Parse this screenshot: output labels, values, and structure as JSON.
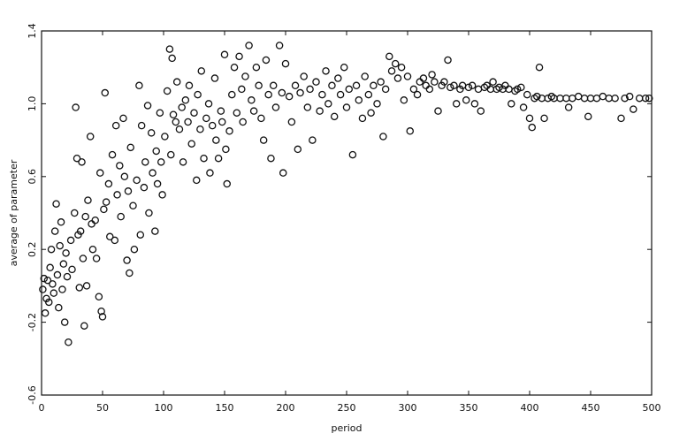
{
  "chart_data": {
    "type": "scatter",
    "x_label": "period",
    "y_label": "average of parameter",
    "xlim": [
      0,
      500
    ],
    "xticks": [
      0,
      50,
      100,
      150,
      200,
      250,
      300,
      350,
      400,
      450,
      500
    ],
    "ylim": [
      -0.6,
      1.4
    ],
    "yticks": [
      -0.6,
      -0.2,
      0.2,
      0.6,
      {
        "value": 1,
        "label": "1.0"
      },
      1.4
    ],
    "color": "#111111",
    "x": [
      1,
      2,
      3,
      4,
      5,
      6,
      7,
      8,
      9,
      10,
      11,
      12,
      13,
      14,
      15,
      16,
      17,
      18,
      19,
      20,
      21,
      22,
      24,
      25,
      27,
      28,
      29,
      30,
      31,
      32,
      33,
      34,
      35,
      36,
      37,
      38,
      40,
      41,
      42,
      44,
      45,
      47,
      48,
      49,
      50,
      51,
      52,
      53,
      55,
      56,
      58,
      60,
      61,
      62,
      64,
      65,
      67,
      68,
      70,
      71,
      72,
      73,
      75,
      76,
      78,
      80,
      81,
      82,
      84,
      85,
      87,
      88,
      90,
      91,
      93,
      94,
      95,
      97,
      98,
      99,
      101,
      103,
      105,
      106,
      107,
      108,
      110,
      111,
      113,
      115,
      116,
      118,
      120,
      121,
      123,
      125,
      127,
      128,
      130,
      131,
      133,
      135,
      137,
      138,
      140,
      142,
      143,
      145,
      147,
      148,
      150,
      151,
      152,
      154,
      156,
      158,
      160,
      162,
      164,
      165,
      167,
      170,
      172,
      174,
      176,
      178,
      180,
      182,
      184,
      186,
      188,
      190,
      192,
      195,
      197,
      198,
      200,
      203,
      205,
      208,
      210,
      212,
      215,
      218,
      220,
      222,
      225,
      228,
      230,
      233,
      235,
      238,
      240,
      243,
      245,
      248,
      250,
      252,
      255,
      258,
      260,
      263,
      265,
      268,
      270,
      272,
      275,
      278,
      280,
      282,
      285,
      287,
      290,
      292,
      295,
      297,
      300,
      302,
      305,
      308,
      310,
      313,
      315,
      318,
      320,
      322,
      325,
      328,
      330,
      333,
      335,
      338,
      340,
      343,
      345,
      348,
      350,
      353,
      355,
      358,
      360,
      363,
      365,
      368,
      370,
      373,
      375,
      378,
      380,
      383,
      385,
      388,
      390,
      393,
      395,
      398,
      400,
      402,
      404,
      406,
      408,
      410,
      412,
      415,
      418,
      420,
      425,
      430,
      432,
      435,
      440,
      445,
      448,
      450,
      455,
      460,
      465,
      470,
      475,
      478,
      482,
      485,
      490,
      495,
      498
    ],
    "values": [
      -0.02,
      0.04,
      -0.15,
      -0.07,
      0.03,
      -0.09,
      0.1,
      0.2,
      0.01,
      -0.04,
      0.3,
      0.45,
      0.06,
      -0.12,
      0.22,
      0.35,
      -0.02,
      0.12,
      -0.2,
      0.18,
      0.05,
      -0.31,
      0.25,
      0.09,
      0.4,
      0.98,
      0.7,
      0.28,
      -0.01,
      0.3,
      0.68,
      0.15,
      -0.22,
      0.38,
      0.0,
      0.47,
      0.82,
      0.34,
      0.2,
      0.36,
      0.15,
      -0.06,
      0.62,
      -0.14,
      -0.17,
      0.42,
      1.06,
      0.46,
      0.56,
      0.27,
      0.72,
      0.25,
      0.88,
      0.5,
      0.66,
      0.38,
      0.92,
      0.6,
      0.14,
      0.52,
      0.07,
      0.76,
      0.44,
      0.2,
      0.58,
      1.1,
      0.28,
      0.88,
      0.54,
      0.68,
      0.99,
      0.4,
      0.84,
      0.62,
      0.3,
      0.74,
      0.56,
      0.95,
      0.68,
      0.5,
      0.82,
      1.07,
      1.3,
      0.72,
      1.25,
      0.94,
      0.9,
      1.12,
      0.86,
      0.98,
      0.68,
      1.02,
      0.9,
      1.1,
      0.78,
      0.95,
      0.58,
      1.05,
      0.86,
      1.18,
      0.7,
      0.92,
      1.0,
      0.62,
      0.88,
      1.14,
      0.8,
      0.7,
      0.96,
      0.9,
      1.27,
      0.75,
      0.56,
      0.85,
      1.05,
      1.2,
      0.95,
      1.26,
      1.08,
      0.9,
      1.15,
      1.32,
      1.02,
      0.96,
      1.2,
      1.1,
      0.92,
      0.8,
      1.24,
      1.05,
      0.7,
      1.1,
      0.98,
      1.32,
      1.06,
      0.62,
      1.22,
      1.04,
      0.9,
      1.1,
      0.75,
      1.06,
      1.15,
      0.98,
      1.08,
      0.8,
      1.12,
      0.96,
      1.05,
      1.18,
      1.0,
      1.1,
      0.93,
      1.14,
      1.05,
      1.2,
      0.98,
      1.08,
      0.72,
      1.1,
      1.02,
      0.92,
      1.15,
      1.05,
      0.95,
      1.1,
      1.0,
      1.12,
      0.82,
      1.08,
      1.26,
      1.18,
      1.22,
      1.14,
      1.2,
      1.02,
      1.15,
      0.85,
      1.08,
      1.05,
      1.12,
      1.14,
      1.1,
      1.08,
      1.16,
      1.12,
      0.96,
      1.1,
      1.12,
      1.24,
      1.09,
      1.1,
      1.0,
      1.08,
      1.1,
      1.02,
      1.09,
      1.1,
      1.0,
      1.08,
      0.96,
      1.09,
      1.1,
      1.08,
      1.12,
      1.08,
      1.09,
      1.08,
      1.1,
      1.08,
      1.0,
      1.07,
      1.08,
      1.09,
      0.98,
      1.05,
      0.92,
      0.87,
      1.03,
      1.04,
      1.2,
      1.03,
      0.92,
      1.03,
      1.04,
      1.03,
      1.03,
      1.03,
      0.98,
      1.03,
      1.04,
      1.03,
      0.93,
      1.03,
      1.03,
      1.04,
      1.03,
      1.03,
      0.92,
      1.03,
      1.04,
      0.97,
      1.03,
      1.03,
      1.03
    ]
  }
}
